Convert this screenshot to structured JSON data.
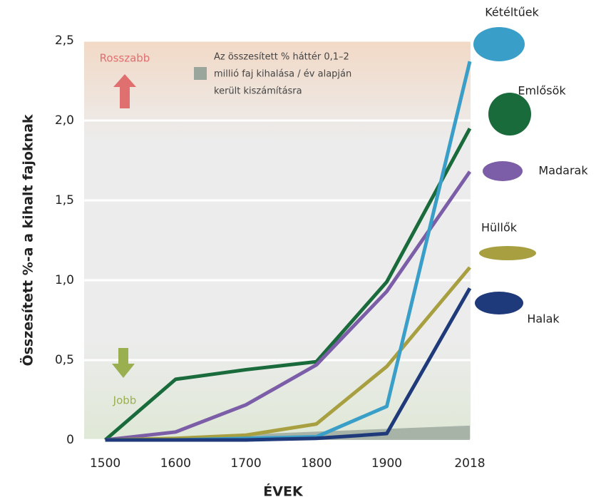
{
  "chart_data": {
    "type": "line",
    "xlabel": "ÉVEK",
    "ylabel": "Összesített %-a a kihalt fajoknak",
    "xlim": [
      1470,
      2018
    ],
    "xticks": [
      1500,
      1600,
      1700,
      1800,
      1900,
      2018
    ],
    "ylim": [
      0,
      2.5
    ],
    "yticks": [
      0,
      {
        "value": 0.5,
        "label": "0,5"
      },
      {
        "value": 1.0,
        "label": "1,0"
      },
      {
        "value": 1.5,
        "label": "1,5"
      },
      {
        "value": 2.0,
        "label": "2,0"
      },
      {
        "value": 2.5,
        "label": "2,5"
      }
    ],
    "grid": true,
    "x": [
      1500,
      1600,
      1700,
      1800,
      1900,
      2018
    ],
    "series": [
      {
        "name": "Emlősök",
        "color": "#1a6b3c",
        "values": [
          0,
          0.38,
          0.44,
          0.49,
          0.99,
          1.95
        ]
      },
      {
        "name": "Madarak",
        "color": "#7b5ea7",
        "values": [
          0,
          0.05,
          0.22,
          0.47,
          0.93,
          1.68
        ]
      },
      {
        "name": "Hüllők",
        "color": "#a8a040",
        "values": [
          0,
          0.01,
          0.03,
          0.1,
          0.46,
          1.08
        ]
      },
      {
        "name": "Kétéltűek",
        "color": "#3a9fc8",
        "values": [
          0,
          0,
          0.01,
          0.02,
          0.21,
          2.37
        ]
      },
      {
        "name": "Halak",
        "color": "#1e3a7a",
        "values": [
          0,
          0,
          0,
          0.01,
          0.04,
          0.95
        ]
      }
    ],
    "background_area": {
      "color": "#9aa59c",
      "x": [
        1500,
        2018
      ],
      "values": [
        0,
        0.09
      ]
    },
    "annotations": {
      "worse": "Rosszabb",
      "better": "Jobb",
      "note": [
        "Az összesített % háttér 0,1–2",
        "millió faj kihalása / év alapján",
        "került kiszámításra"
      ]
    }
  }
}
